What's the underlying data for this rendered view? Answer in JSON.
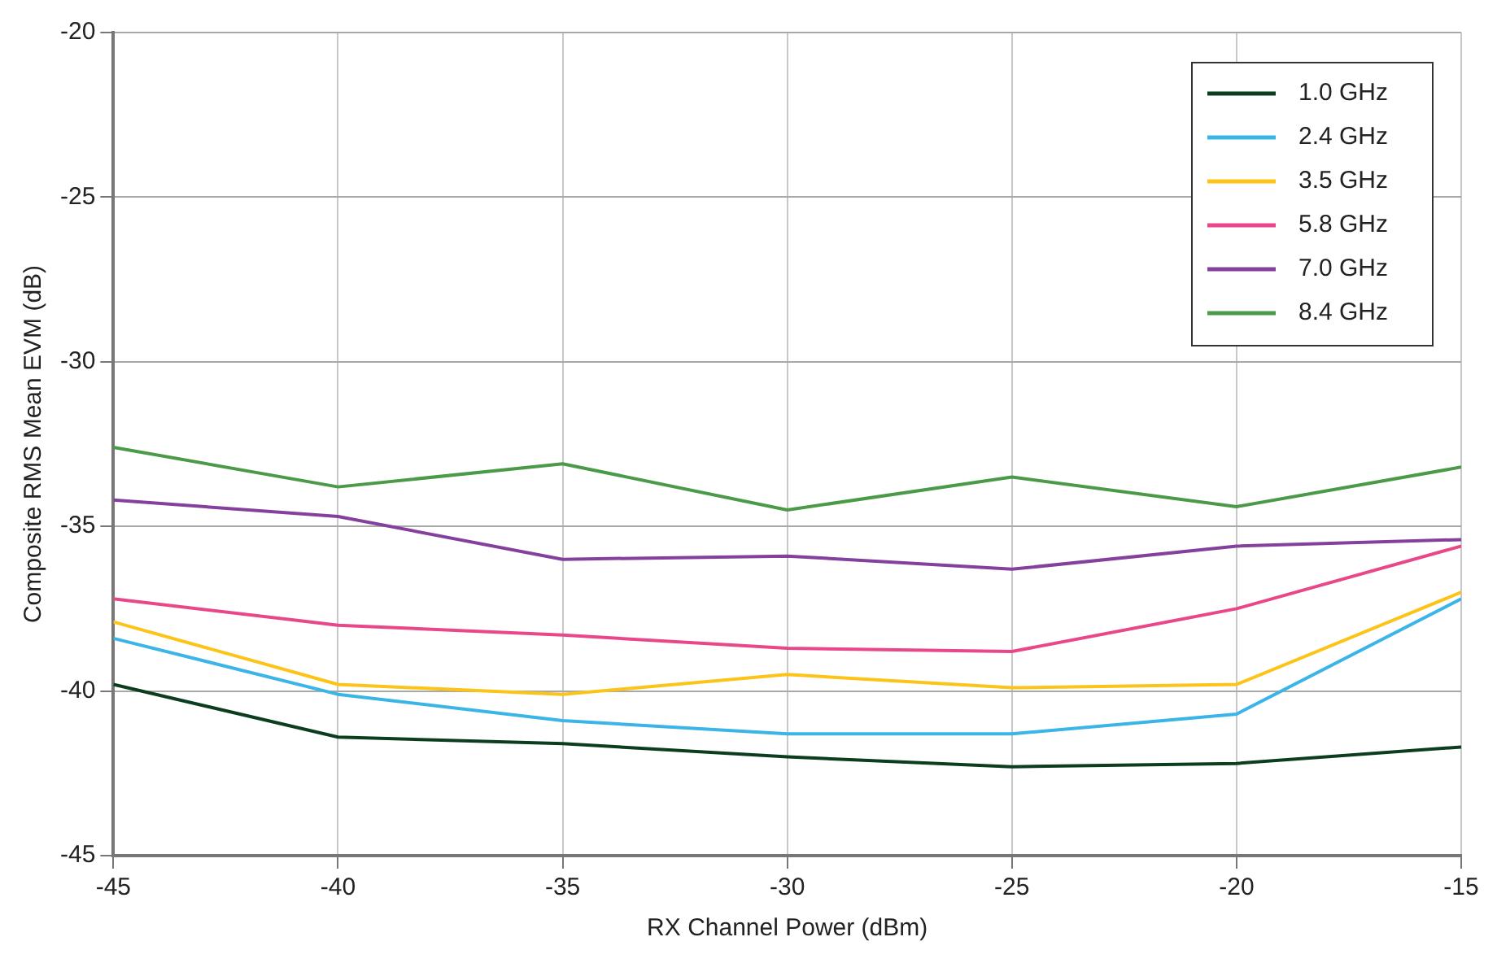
{
  "chart_data": {
    "type": "line",
    "xlabel": "RX Channel Power (dBm)",
    "ylabel": "Composite RMS Mean EVM (dB)",
    "x": [
      -45,
      -40,
      -35,
      -30,
      -25,
      -20,
      -15
    ],
    "series": [
      {
        "name": "1.0 GHz",
        "color": "#0b3d1e",
        "values": [
          -39.8,
          -41.4,
          -41.6,
          -42.0,
          -42.3,
          -42.2,
          -41.7
        ]
      },
      {
        "name": "2.4 GHz",
        "color": "#3bb4e8",
        "values": [
          -38.4,
          -40.1,
          -40.9,
          -41.3,
          -41.3,
          -40.7,
          -37.2
        ]
      },
      {
        "name": "3.5 GHz",
        "color": "#fcc419",
        "values": [
          -37.9,
          -39.8,
          -40.1,
          -39.5,
          -39.9,
          -39.8,
          -37.0
        ]
      },
      {
        "name": "5.8 GHz",
        "color": "#e8488a",
        "values": [
          -37.2,
          -38.0,
          -38.3,
          -38.7,
          -38.8,
          -37.5,
          -35.6
        ]
      },
      {
        "name": "7.0 GHz",
        "color": "#84409c",
        "values": [
          -34.2,
          -34.7,
          -36.0,
          -35.9,
          -36.3,
          -35.6,
          -35.4
        ]
      },
      {
        "name": "8.4 GHz",
        "color": "#4a9a48",
        "values": [
          -32.6,
          -33.8,
          -33.1,
          -34.5,
          -33.5,
          -34.4,
          -33.2
        ]
      }
    ],
    "xlim": [
      -45,
      -15
    ],
    "xticks": [
      -45,
      -40,
      -35,
      -30,
      -25,
      -20,
      -15
    ],
    "ylim": [
      -45,
      -20
    ],
    "yticks": [
      -45,
      -40,
      -35,
      -30,
      -25,
      -20
    ],
    "grid": true,
    "legend": "top right",
    "marker": "none",
    "line_style": "solid"
  }
}
